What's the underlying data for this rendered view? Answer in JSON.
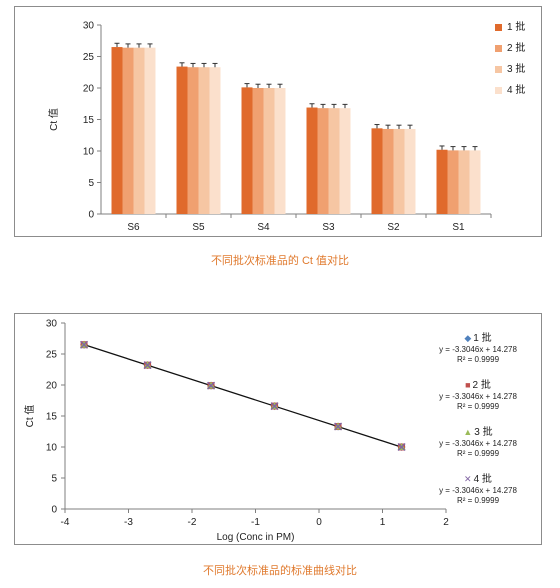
{
  "chart1": {
    "chart_data": {
      "type": "bar",
      "categories": [
        "S6",
        "S5",
        "S4",
        "S3",
        "S2",
        "S1"
      ],
      "series": [
        {
          "name": "1 批",
          "values": [
            26.5,
            23.4,
            20.1,
            16.9,
            13.6,
            10.2
          ],
          "color": "#e06a2c"
        },
        {
          "name": "2 批",
          "values": [
            26.4,
            23.3,
            20.0,
            16.8,
            13.5,
            10.1
          ],
          "color": "#f0a070"
        },
        {
          "name": "3 批",
          "values": [
            26.4,
            23.3,
            20.0,
            16.8,
            13.5,
            10.1
          ],
          "color": "#f6c6a3"
        },
        {
          "name": "4 批",
          "values": [
            26.4,
            23.3,
            20.0,
            16.8,
            13.5,
            10.1
          ],
          "color": "#fbe0cc"
        }
      ],
      "error": 0.6,
      "ylabel": "Ct 值",
      "ylim": [
        0,
        30
      ],
      "yticks": [
        "0",
        "5",
        "10",
        "15",
        "20",
        "25",
        "30"
      ],
      "grid": false,
      "legend_position": "right"
    },
    "caption": "不同批次标准品的 Ct 值对比"
  },
  "chart2": {
    "chart_data": {
      "type": "scatter",
      "x": [
        -3.7,
        -2.7,
        -1.7,
        -0.7,
        0.3,
        1.3
      ],
      "series": [
        {
          "name": "1 批",
          "marker": "diamond",
          "color": "#4f81bd",
          "values": [
            26.5,
            23.2,
            19.9,
            16.6,
            13.3,
            10.0
          ],
          "equation": "y = -3.3046x + 14.278",
          "r2": "R² = 0.9999"
        },
        {
          "name": "2 批",
          "marker": "square",
          "color": "#c0504d",
          "values": [
            26.5,
            23.2,
            19.9,
            16.6,
            13.3,
            10.0
          ],
          "equation": "y = -3.3046x + 14.278",
          "r2": "R² = 0.9999"
        },
        {
          "name": "3 批",
          "marker": "triangle",
          "color": "#9bbb59",
          "values": [
            26.5,
            23.2,
            19.9,
            16.6,
            13.3,
            10.0
          ],
          "equation": "y = -3.3046x + 14.278",
          "r2": "R² = 0.9999"
        },
        {
          "name": "4 批",
          "marker": "x",
          "color": "#8064a2",
          "values": [
            26.5,
            23.2,
            19.9,
            16.6,
            13.3,
            10.0
          ],
          "equation": "y = -3.3046x + 14.278",
          "r2": "R² = 0.9999"
        }
      ],
      "trendline": {
        "slope": -3.3046,
        "intercept": 14.278
      },
      "xlabel": "Log (Conc in PM)",
      "ylabel": "Ct 值",
      "xlim": [
        -4,
        2
      ],
      "ylim": [
        0,
        30
      ],
      "xticks": [
        "-4",
        "-3",
        "-2",
        "-1",
        "0",
        "1",
        "2"
      ],
      "yticks": [
        "0",
        "5",
        "10",
        "15",
        "20",
        "25",
        "30"
      ],
      "grid": false,
      "legend_position": "right"
    },
    "caption": "不同批次标准品的标准曲线对比"
  }
}
